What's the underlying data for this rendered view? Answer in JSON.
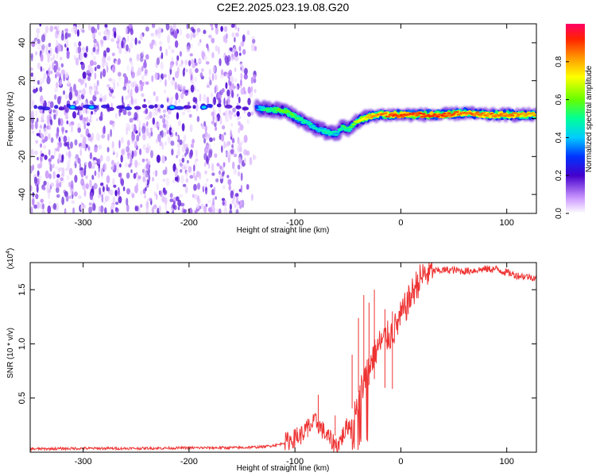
{
  "title": "C2E2.2025.023.19.08.G20",
  "chart_data": [
    {
      "type": "heatmap",
      "xlabel": "Height of straight line (km)",
      "ylabel": "Frequency (Hz)",
      "xlim": [
        -350,
        128
      ],
      "ylim": [
        -50,
        50
      ],
      "xticks": [
        -300,
        -200,
        -100,
        0,
        100
      ],
      "yticks": [
        -40,
        -20,
        0,
        20,
        40
      ],
      "colorbar": {
        "label": "Normalized spectral amplitude",
        "range": [
          0,
          1
        ],
        "ticks": [
          "0.0",
          "0.2",
          "0.4",
          "0.6",
          "0.8"
        ],
        "tick_values": [
          0.0,
          0.2,
          0.4,
          0.6,
          0.8
        ]
      },
      "noise_region": {
        "x_range": [
          -350,
          -137
        ],
        "amplitude_range": [
          0.02,
          0.2
        ]
      },
      "ridge": {
        "description": "frequency of peak amplitude vs height",
        "x": [
          -350,
          -140,
          -130,
          -110,
          -100,
          -90,
          -80,
          -70,
          -60,
          -55,
          -50,
          -45,
          -40,
          -30,
          -20,
          0,
          20,
          40,
          60,
          80,
          100,
          128
        ],
        "y": [
          6,
          6,
          5,
          4,
          1,
          -2,
          -5,
          -7,
          -8,
          -4,
          -6,
          -3,
          -1,
          1,
          2,
          2,
          2,
          2,
          3,
          2,
          2,
          2
        ],
        "amp": [
          0.15,
          0.2,
          0.5,
          0.6,
          0.55,
          0.5,
          0.45,
          0.5,
          0.45,
          0.55,
          0.5,
          0.6,
          0.7,
          0.8,
          0.85,
          0.9,
          0.9,
          0.9,
          0.85,
          0.85,
          0.85,
          0.8
        ]
      }
    },
    {
      "type": "line",
      "series": [
        {
          "name": "SNR",
          "color": "#ee3333",
          "x": [
            -350,
            -300,
            -250,
            -200,
            -150,
            -130,
            -115,
            -105,
            -95,
            -90,
            -85,
            -80,
            -75,
            -70,
            -65,
            -60,
            -55,
            -50,
            -45,
            -40,
            -35,
            -30,
            -25,
            -20,
            -15,
            -10,
            -5,
            0,
            5,
            10,
            15,
            20,
            25,
            30,
            40,
            50,
            60,
            70,
            80,
            90,
            100,
            110,
            120,
            128
          ],
          "y": [
            300,
            350,
            350,
            400,
            420,
            500,
            700,
            1100,
            1500,
            2000,
            2500,
            2800,
            2200,
            1500,
            1000,
            600,
            1500,
            2500,
            3500,
            5000,
            6500,
            8000,
            9000,
            10000,
            10500,
            10800,
            11500,
            12500,
            13500,
            14500,
            15500,
            16200,
            16500,
            16700,
            16800,
            16800,
            16700,
            16800,
            16900,
            16900,
            16600,
            16300,
            16200,
            16100
          ]
        }
      ],
      "spikes": {
        "x": [
          -98,
          -88,
          -78,
          -62,
          -46,
          -40,
          -35,
          -30,
          -25,
          -15,
          -8
        ],
        "y": [
          2300,
          3100,
          5300,
          3400,
          9000,
          12400,
          14500,
          13800,
          15000,
          13200,
          13000
        ]
      },
      "xlabel": "Height of straight line (km)",
      "ylabel": "SNR (10 * v/v)",
      "multiplier_label": "(x10",
      "multiplier_exp": "4",
      "multiplier_close": ")",
      "xlim": [
        -350,
        128
      ],
      "ylim": [
        0,
        17500
      ],
      "xticks": [
        -300,
        -200,
        -100,
        0,
        100
      ],
      "yticks": [
        5000,
        10000,
        15000
      ],
      "ytick_labels": [
        "0.5",
        "1.0",
        "1.5"
      ]
    }
  ]
}
